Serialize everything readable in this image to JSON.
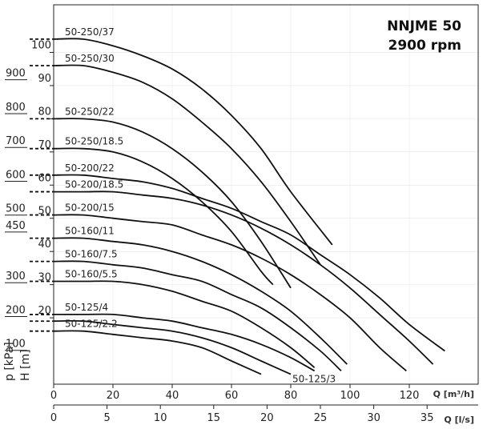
{
  "chart_data": {
    "type": "line",
    "title": "NNJME 50",
    "subtitle": "2900 rpm",
    "x_flow_m3h": {
      "label": "Q [m³/h]",
      "range": [
        0,
        120
      ],
      "ticks": [
        0,
        20,
        40,
        60,
        80,
        100,
        120
      ]
    },
    "x_flow_ls": {
      "label": "Q [l/s]",
      "range": [
        0,
        35
      ],
      "ticks": [
        0,
        5,
        10,
        15,
        20,
        25,
        30,
        35
      ]
    },
    "y_head_m": {
      "label": "H [m]",
      "range": [
        0,
        110
      ],
      "ticks": [
        20,
        30,
        40,
        50,
        60,
        70,
        80,
        90,
        100
      ]
    },
    "y_pressure_kpa": {
      "label": "p [kPa]",
      "range": [
        0,
        1080
      ],
      "ticks": [
        100,
        200,
        300,
        450,
        500,
        600,
        700,
        800,
        900
      ]
    },
    "grid": true,
    "series": [
      {
        "name": "50-250/37",
        "points": [
          [
            0,
            104
          ],
          [
            10,
            104
          ],
          [
            20,
            102
          ],
          [
            30,
            99
          ],
          [
            40,
            95
          ],
          [
            50,
            89
          ],
          [
            60,
            81
          ],
          [
            70,
            71
          ],
          [
            80,
            58
          ],
          [
            94,
            42
          ]
        ]
      },
      {
        "name": "50-250/30",
        "points": [
          [
            0,
            96
          ],
          [
            10,
            96
          ],
          [
            20,
            94
          ],
          [
            30,
            91
          ],
          [
            40,
            86
          ],
          [
            50,
            79
          ],
          [
            60,
            71
          ],
          [
            70,
            61
          ],
          [
            80,
            49
          ],
          [
            90,
            36
          ]
        ]
      },
      {
        "name": "50-250/22",
        "points": [
          [
            0,
            80
          ],
          [
            10,
            80
          ],
          [
            20,
            79
          ],
          [
            30,
            76
          ],
          [
            40,
            71
          ],
          [
            50,
            64
          ],
          [
            60,
            55
          ],
          [
            70,
            43
          ],
          [
            80,
            29
          ]
        ]
      },
      {
        "name": "50-250/18.5",
        "points": [
          [
            0,
            71
          ],
          [
            10,
            71
          ],
          [
            20,
            70
          ],
          [
            30,
            67
          ],
          [
            40,
            62
          ],
          [
            50,
            55
          ],
          [
            60,
            46
          ],
          [
            70,
            34
          ],
          [
            74,
            30
          ]
        ]
      },
      {
        "name": "50-200/22",
        "points": [
          [
            0,
            63
          ],
          [
            10,
            63
          ],
          [
            20,
            62
          ],
          [
            30,
            61
          ],
          [
            40,
            59
          ],
          [
            50,
            56
          ],
          [
            60,
            53
          ],
          [
            70,
            49
          ],
          [
            80,
            45
          ],
          [
            90,
            39
          ],
          [
            100,
            33
          ],
          [
            110,
            26
          ],
          [
            120,
            18
          ],
          [
            132,
            10
          ]
        ]
      },
      {
        "name": "50-200/18.5",
        "points": [
          [
            0,
            58
          ],
          [
            10,
            58
          ],
          [
            20,
            58
          ],
          [
            30,
            57
          ],
          [
            40,
            56
          ],
          [
            50,
            54
          ],
          [
            60,
            51
          ],
          [
            70,
            47
          ],
          [
            80,
            42
          ],
          [
            90,
            36
          ],
          [
            100,
            29
          ],
          [
            110,
            21
          ],
          [
            120,
            13
          ],
          [
            128,
            6
          ]
        ]
      },
      {
        "name": "50-200/15",
        "points": [
          [
            0,
            51
          ],
          [
            10,
            51
          ],
          [
            20,
            50
          ],
          [
            30,
            49
          ],
          [
            40,
            48
          ],
          [
            50,
            45
          ],
          [
            60,
            42
          ],
          [
            70,
            38
          ],
          [
            80,
            33
          ],
          [
            90,
            27
          ],
          [
            100,
            20
          ],
          [
            110,
            11
          ],
          [
            119,
            4
          ]
        ]
      },
      {
        "name": "50-160/11",
        "points": [
          [
            0,
            44
          ],
          [
            10,
            44
          ],
          [
            20,
            43
          ],
          [
            30,
            42
          ],
          [
            40,
            40
          ],
          [
            50,
            37
          ],
          [
            60,
            33
          ],
          [
            70,
            28
          ],
          [
            80,
            22
          ],
          [
            90,
            14
          ],
          [
            99,
            6
          ]
        ]
      },
      {
        "name": "50-160/7.5",
        "points": [
          [
            0,
            37
          ],
          [
            10,
            37
          ],
          [
            20,
            36
          ],
          [
            30,
            35
          ],
          [
            40,
            33
          ],
          [
            50,
            31
          ],
          [
            60,
            27
          ],
          [
            70,
            23
          ],
          [
            80,
            17
          ],
          [
            90,
            10
          ],
          [
            97,
            4
          ]
        ]
      },
      {
        "name": "50-160/5.5",
        "points": [
          [
            0,
            31
          ],
          [
            10,
            31
          ],
          [
            20,
            31
          ],
          [
            30,
            30
          ],
          [
            40,
            28
          ],
          [
            50,
            25
          ],
          [
            60,
            22
          ],
          [
            70,
            17
          ],
          [
            80,
            11
          ],
          [
            88,
            5
          ]
        ]
      },
      {
        "name": "50-125/4",
        "points": [
          [
            0,
            21
          ],
          [
            10,
            21
          ],
          [
            20,
            21
          ],
          [
            30,
            20
          ],
          [
            40,
            19
          ],
          [
            50,
            17
          ],
          [
            60,
            15
          ],
          [
            70,
            12
          ],
          [
            80,
            8
          ],
          [
            88,
            4
          ]
        ]
      },
      {
        "name": "50-125/3",
        "points": [
          [
            0,
            19
          ],
          [
            10,
            19
          ],
          [
            20,
            18
          ],
          [
            30,
            17
          ],
          [
            40,
            16
          ],
          [
            50,
            14
          ],
          [
            60,
            11
          ],
          [
            70,
            7
          ],
          [
            80,
            3
          ]
        ]
      },
      {
        "name": "50-125/2.2",
        "points": [
          [
            0,
            16
          ],
          [
            10,
            16
          ],
          [
            20,
            15
          ],
          [
            30,
            14
          ],
          [
            40,
            13
          ],
          [
            50,
            11
          ],
          [
            60,
            7
          ],
          [
            70,
            3
          ]
        ]
      }
    ]
  }
}
